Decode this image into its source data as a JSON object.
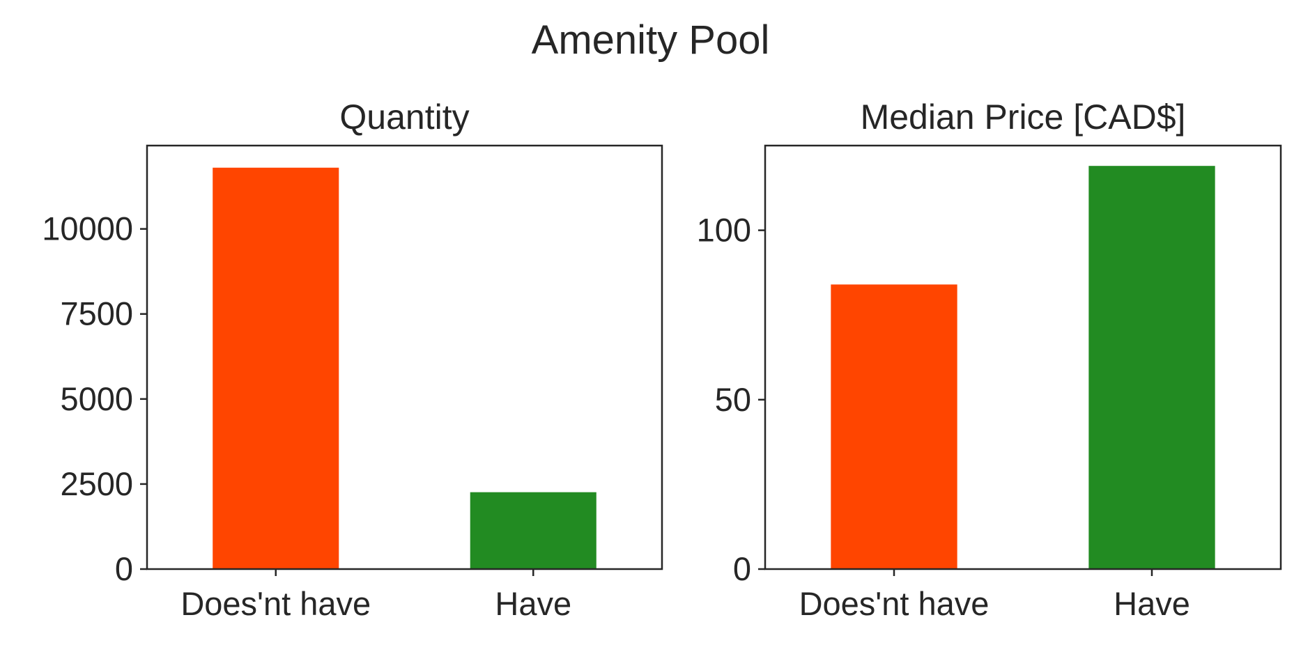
{
  "figure": {
    "title": "Amenity Pool"
  },
  "chart_data": [
    {
      "type": "bar",
      "title": "Quantity",
      "categories": [
        "Does'nt have",
        "Have"
      ],
      "values": [
        11800,
        2260
      ],
      "colors": [
        "#ff4500",
        "#228b22"
      ],
      "ylim": [
        0,
        12450
      ],
      "yticks": [
        0,
        2500,
        5000,
        7500,
        10000
      ],
      "xlabel": "",
      "ylabel": "",
      "grid": false,
      "legend": false
    },
    {
      "type": "bar",
      "title": "Median Price [CAD$]",
      "categories": [
        "Does'nt have",
        "Have"
      ],
      "values": [
        84,
        119
      ],
      "colors": [
        "#ff4500",
        "#228b22"
      ],
      "ylim": [
        0,
        125
      ],
      "yticks": [
        0,
        50,
        100
      ],
      "xlabel": "",
      "ylabel": "",
      "grid": false,
      "legend": false
    }
  ]
}
